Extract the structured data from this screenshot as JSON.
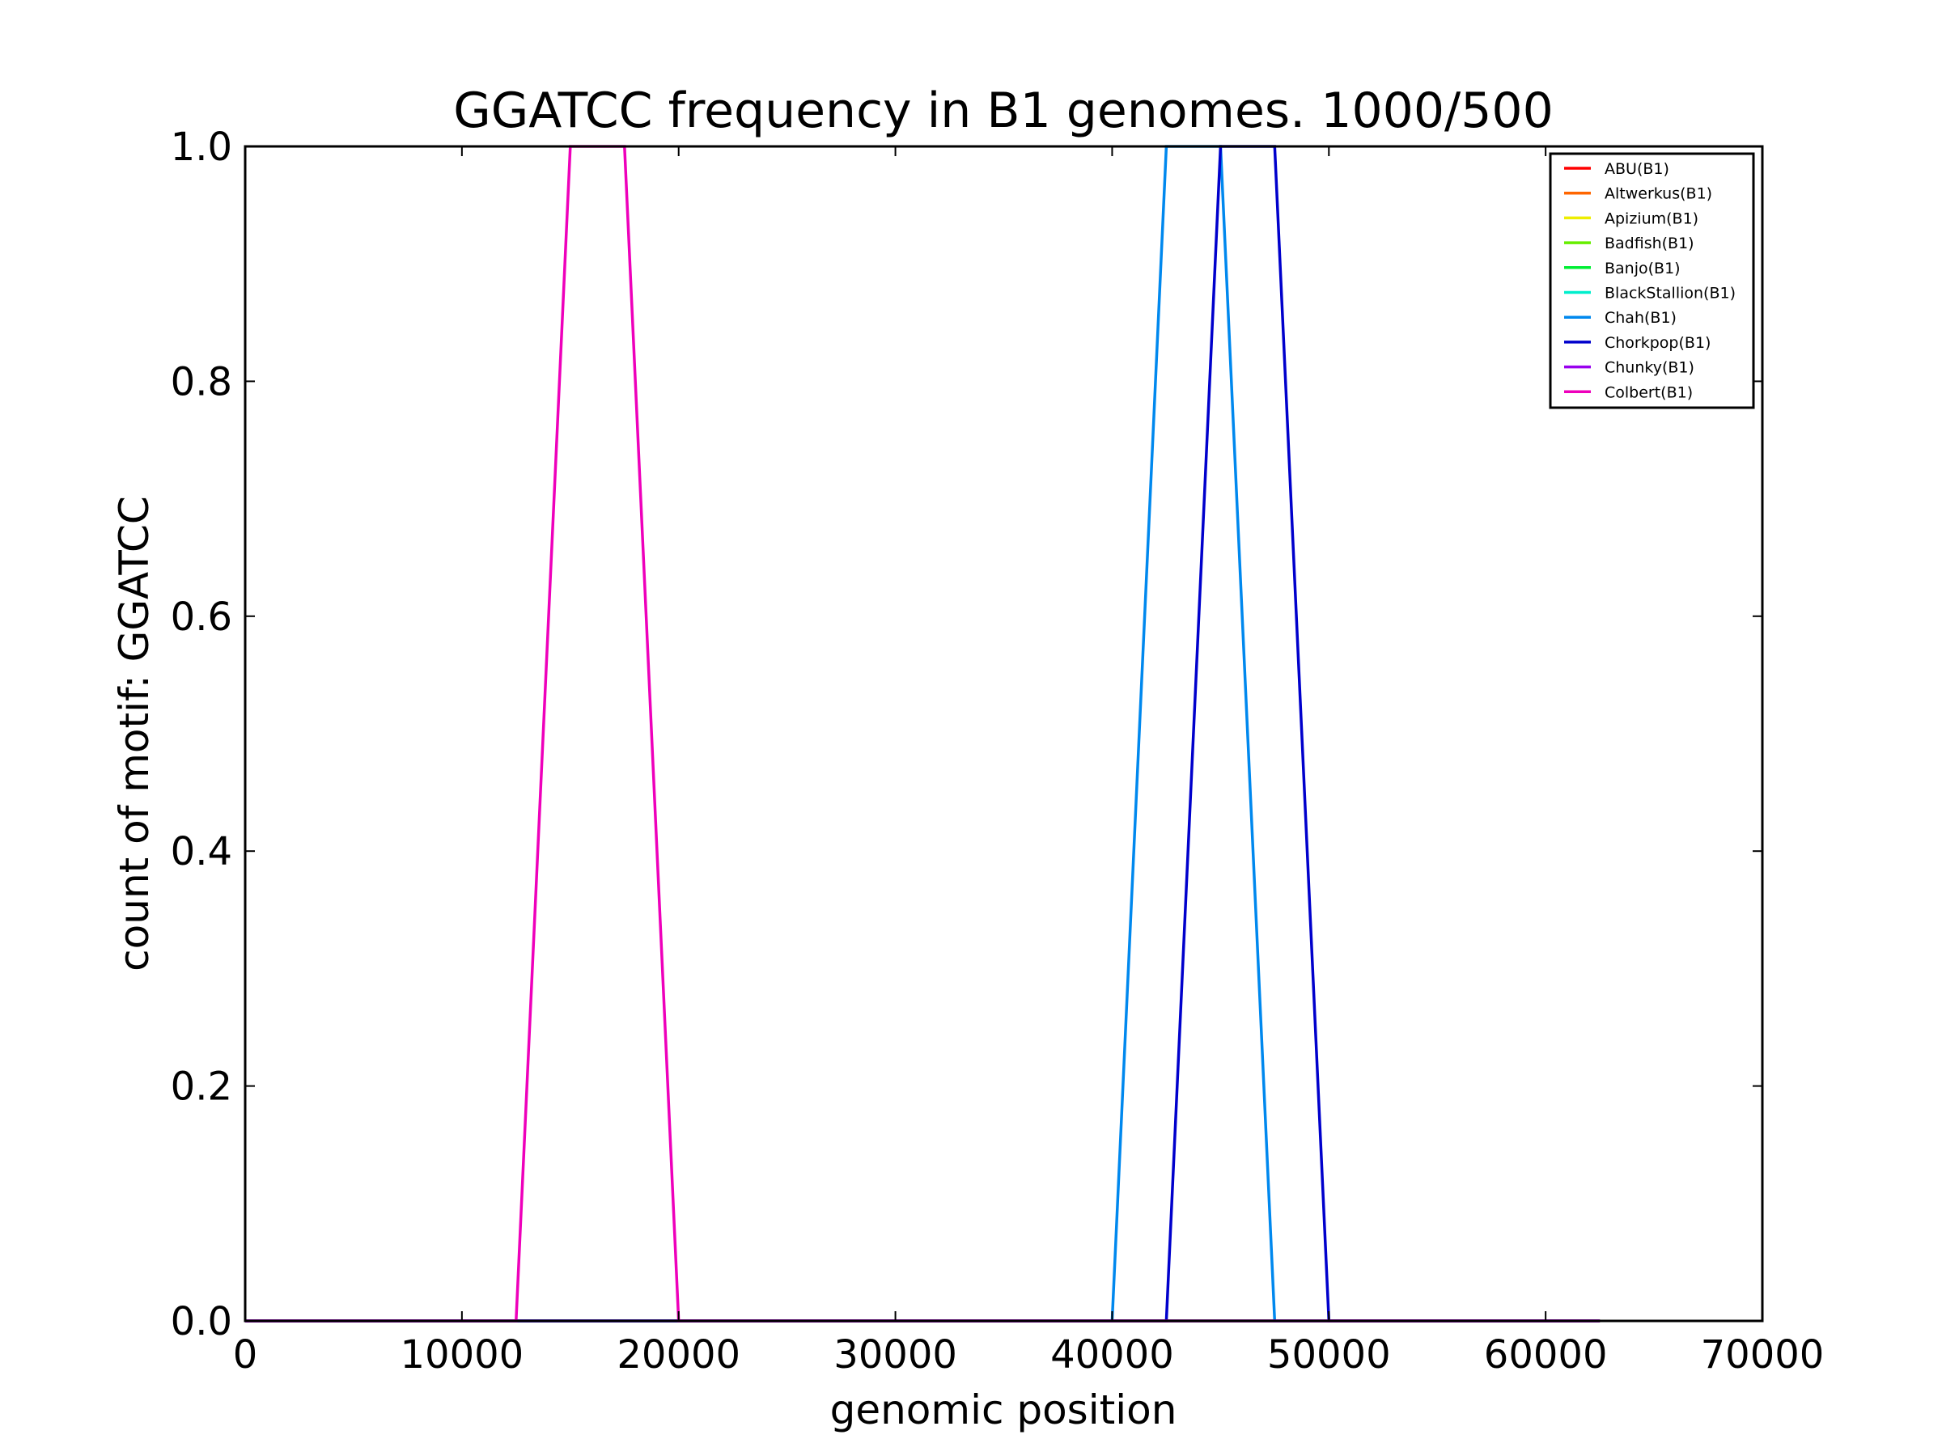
{
  "chart_data": {
    "type": "line",
    "title": "GGATCC frequency in B1 genomes. 1000/500",
    "xlabel": "genomic position",
    "ylabel": "count of motif: GGATCC",
    "xlim": [
      0,
      70000
    ],
    "ylim": [
      0,
      1.0
    ],
    "x_ticks": [
      0,
      10000,
      20000,
      30000,
      40000,
      50000,
      60000,
      70000
    ],
    "x_tick_labels": [
      "0",
      "10000",
      "20000",
      "30000",
      "40000",
      "50000",
      "60000",
      "70000"
    ],
    "y_ticks": [
      0,
      0.2,
      0.4,
      0.6,
      0.8,
      1.0
    ],
    "y_tick_labels": [
      "0.0",
      "0.2",
      "0.4",
      "0.6",
      "0.8",
      "1.0"
    ],
    "grid": false,
    "legend_position": "top-right",
    "series": [
      {
        "name": "ABU(B1)",
        "color": "#ff0000",
        "points": [
          [
            0,
            0
          ],
          [
            62500,
            0
          ]
        ]
      },
      {
        "name": "Altwerkus(B1)",
        "color": "#ff6600",
        "points": [
          [
            0,
            0
          ],
          [
            62500,
            0
          ]
        ]
      },
      {
        "name": "Apizium(B1)",
        "color": "#eeee00",
        "points": [
          [
            0,
            0
          ],
          [
            62500,
            0
          ]
        ]
      },
      {
        "name": "Badfish(B1)",
        "color": "#66ee00",
        "points": [
          [
            0,
            0
          ],
          [
            62500,
            0
          ]
        ]
      },
      {
        "name": "Banjo(B1)",
        "color": "#00ee33",
        "points": [
          [
            0,
            0
          ],
          [
            62500,
            0
          ]
        ]
      },
      {
        "name": "BlackStallion(B1)",
        "color": "#00eecc",
        "points": [
          [
            0,
            0
          ],
          [
            62500,
            0
          ]
        ]
      },
      {
        "name": "Chah(B1)",
        "color": "#0088ee",
        "points": [
          [
            0,
            0
          ],
          [
            40000,
            0
          ],
          [
            42500,
            1
          ],
          [
            45000,
            1
          ],
          [
            47500,
            0
          ],
          [
            62500,
            0
          ]
        ]
      },
      {
        "name": "Chorkpop(B1)",
        "color": "#0000cc",
        "points": [
          [
            0,
            0
          ],
          [
            42500,
            0
          ],
          [
            45000,
            1
          ],
          [
            47500,
            1
          ],
          [
            50000,
            0
          ],
          [
            62500,
            0
          ]
        ]
      },
      {
        "name": "Chunky(B1)",
        "color": "#9900ee",
        "points": [
          [
            0,
            0
          ],
          [
            62500,
            0
          ]
        ]
      },
      {
        "name": "Colbert(B1)",
        "color": "#ee00bb",
        "points": [
          [
            0,
            0
          ],
          [
            12500,
            0
          ],
          [
            15000,
            1
          ],
          [
            17500,
            1
          ],
          [
            20000,
            0
          ],
          [
            62500,
            0
          ]
        ]
      }
    ]
  }
}
